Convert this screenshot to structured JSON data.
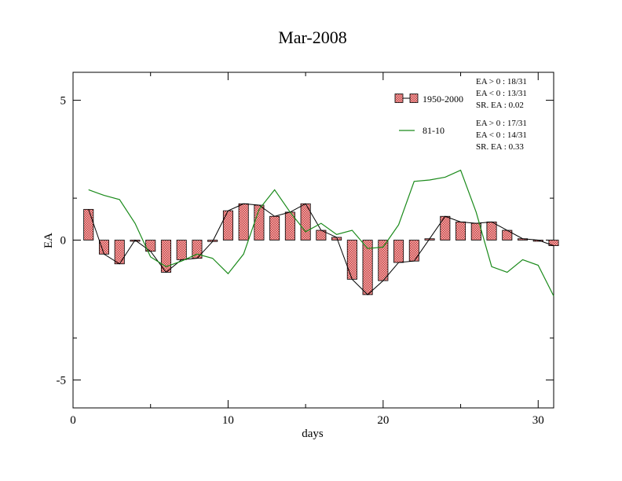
{
  "chart_data": {
    "type": "bar",
    "title": "Mar-2008",
    "xlabel": "days",
    "ylabel": "EA",
    "xlim": [
      0,
      31
    ],
    "ylim": [
      -6,
      6
    ],
    "x_ticks": [
      0,
      10,
      20,
      30
    ],
    "y_ticks": [
      5,
      0,
      -5
    ],
    "x_tick_labels": [
      "0",
      "10",
      "20",
      "30"
    ],
    "y_tick_labels": [
      "5",
      "0",
      "-5"
    ],
    "grid": false,
    "legend_position": "top-right",
    "colors": {
      "bars": "#e06060",
      "series2": "#1a8a1a",
      "line1": "#000000"
    },
    "days": [
      1,
      2,
      3,
      4,
      5,
      6,
      7,
      8,
      9,
      10,
      11,
      12,
      13,
      14,
      15,
      16,
      17,
      18,
      19,
      20,
      21,
      22,
      23,
      24,
      25,
      26,
      27,
      28,
      29,
      30,
      31
    ],
    "series": [
      {
        "name": "1950-2000",
        "style": "bar+line",
        "values": [
          1.1,
          -0.5,
          -0.85,
          0.0,
          -0.4,
          -1.15,
          -0.7,
          -0.65,
          -0.05,
          1.05,
          1.3,
          1.25,
          0.85,
          1.0,
          1.3,
          0.35,
          0.1,
          -1.4,
          -1.95,
          -1.45,
          -0.8,
          -0.75,
          0.05,
          0.85,
          0.65,
          0.6,
          0.65,
          0.35,
          0.05,
          0.0,
          -0.2
        ]
      },
      {
        "name": "81-10",
        "style": "line",
        "values": [
          1.8,
          1.6,
          1.45,
          0.6,
          -0.6,
          -0.95,
          -0.75,
          -0.5,
          -0.65,
          -1.2,
          -0.5,
          1.1,
          1.8,
          1.0,
          0.3,
          0.6,
          0.2,
          0.35,
          -0.3,
          -0.25,
          0.55,
          2.1,
          2.15,
          2.25,
          2.5,
          1.0,
          -0.95,
          -1.15,
          -0.7,
          -0.9,
          -2.0
        ]
      }
    ],
    "annotations": [
      [
        "EA > 0 : 18/31",
        "EA < 0 : 13/31",
        "SR. EA :  0.02"
      ],
      [
        "EA > 0 : 17/31",
        "EA < 0 : 14/31",
        "SR. EA :  0.33"
      ]
    ]
  }
}
